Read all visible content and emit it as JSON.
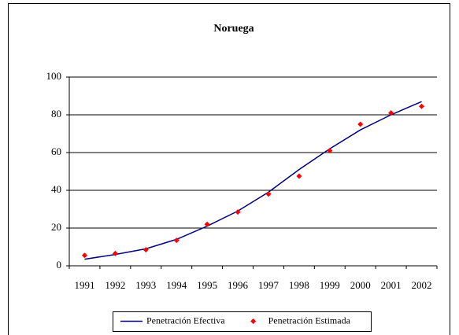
{
  "chart_data": {
    "type": "line",
    "title": "Noruega",
    "categories": [
      "1991",
      "1992",
      "1993",
      "1994",
      "1995",
      "1996",
      "1997",
      "1998",
      "1999",
      "2000",
      "2001",
      "2002"
    ],
    "series": [
      {
        "name": "Penetración Efectiva",
        "color": "#000080",
        "mark": "line",
        "values": [
          3.5,
          6,
          9,
          14,
          21,
          29,
          39,
          51,
          62,
          72,
          80,
          87
        ]
      },
      {
        "name": "Penetración Estimada",
        "color": "#ff0000",
        "mark": "point",
        "values": [
          5.5,
          6.5,
          8.5,
          13.5,
          22,
          28.5,
          38,
          47.5,
          61,
          75,
          81,
          84.5
        ]
      }
    ],
    "ylim": [
      0,
      100
    ],
    "yticks": [
      0,
      20,
      40,
      60,
      80,
      100
    ],
    "grid": true,
    "legend": "bottom"
  }
}
